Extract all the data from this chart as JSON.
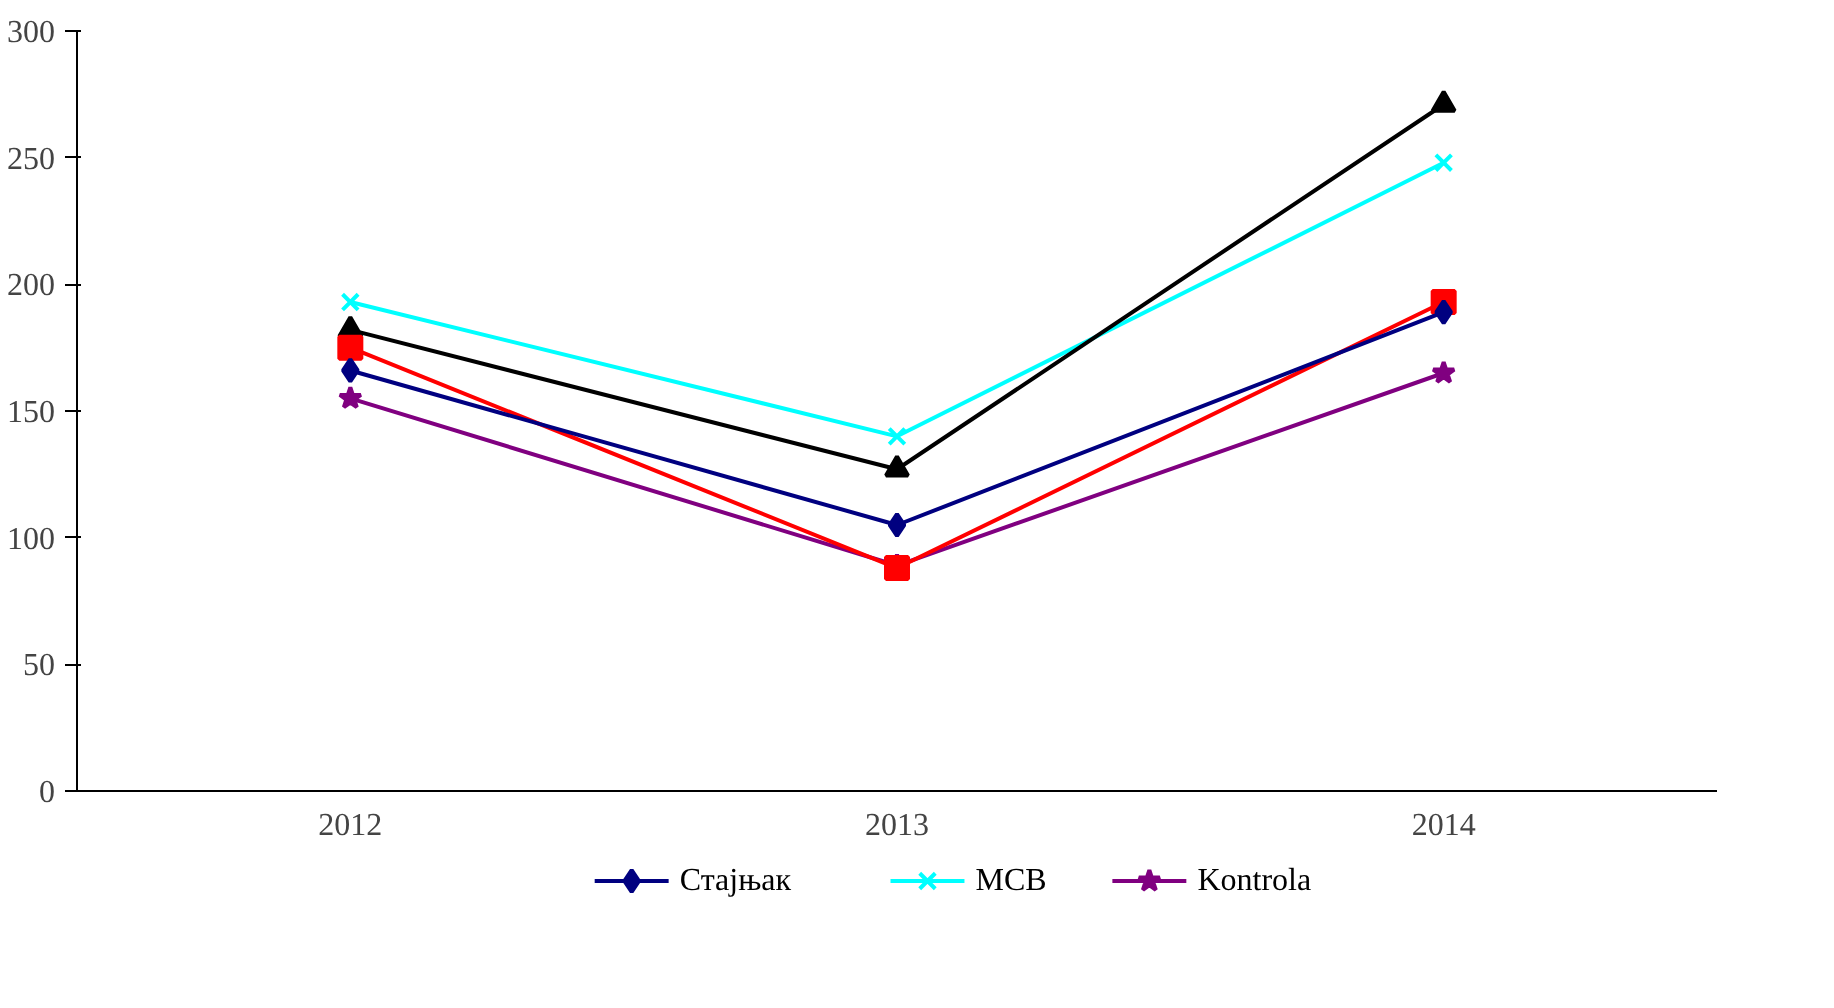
{
  "chart_data": {
    "type": "line",
    "categories": [
      "2012",
      "2013",
      "2014"
    ],
    "ylim": [
      0,
      300
    ],
    "yticks": [
      0,
      50,
      100,
      150,
      200,
      250,
      300
    ],
    "grid": false,
    "legend": "bottom",
    "series": [
      {
        "name": "Стајњак",
        "color": "#000080",
        "marker": "diamond",
        "values": [
          166,
          105,
          189
        ]
      },
      {
        "color": "#ff0000",
        "marker": "square",
        "values": [
          175,
          88,
          193
        ]
      },
      {
        "color": "#000000",
        "marker": "triangle",
        "values": [
          182,
          127,
          271
        ]
      },
      {
        "name": "MCB",
        "color": "#00ffff",
        "marker": "cross",
        "values": [
          193,
          140,
          248
        ]
      },
      {
        "name": "Kontrola",
        "color": "#800080",
        "marker": "star",
        "values": [
          155,
          89,
          165
        ]
      }
    ]
  }
}
